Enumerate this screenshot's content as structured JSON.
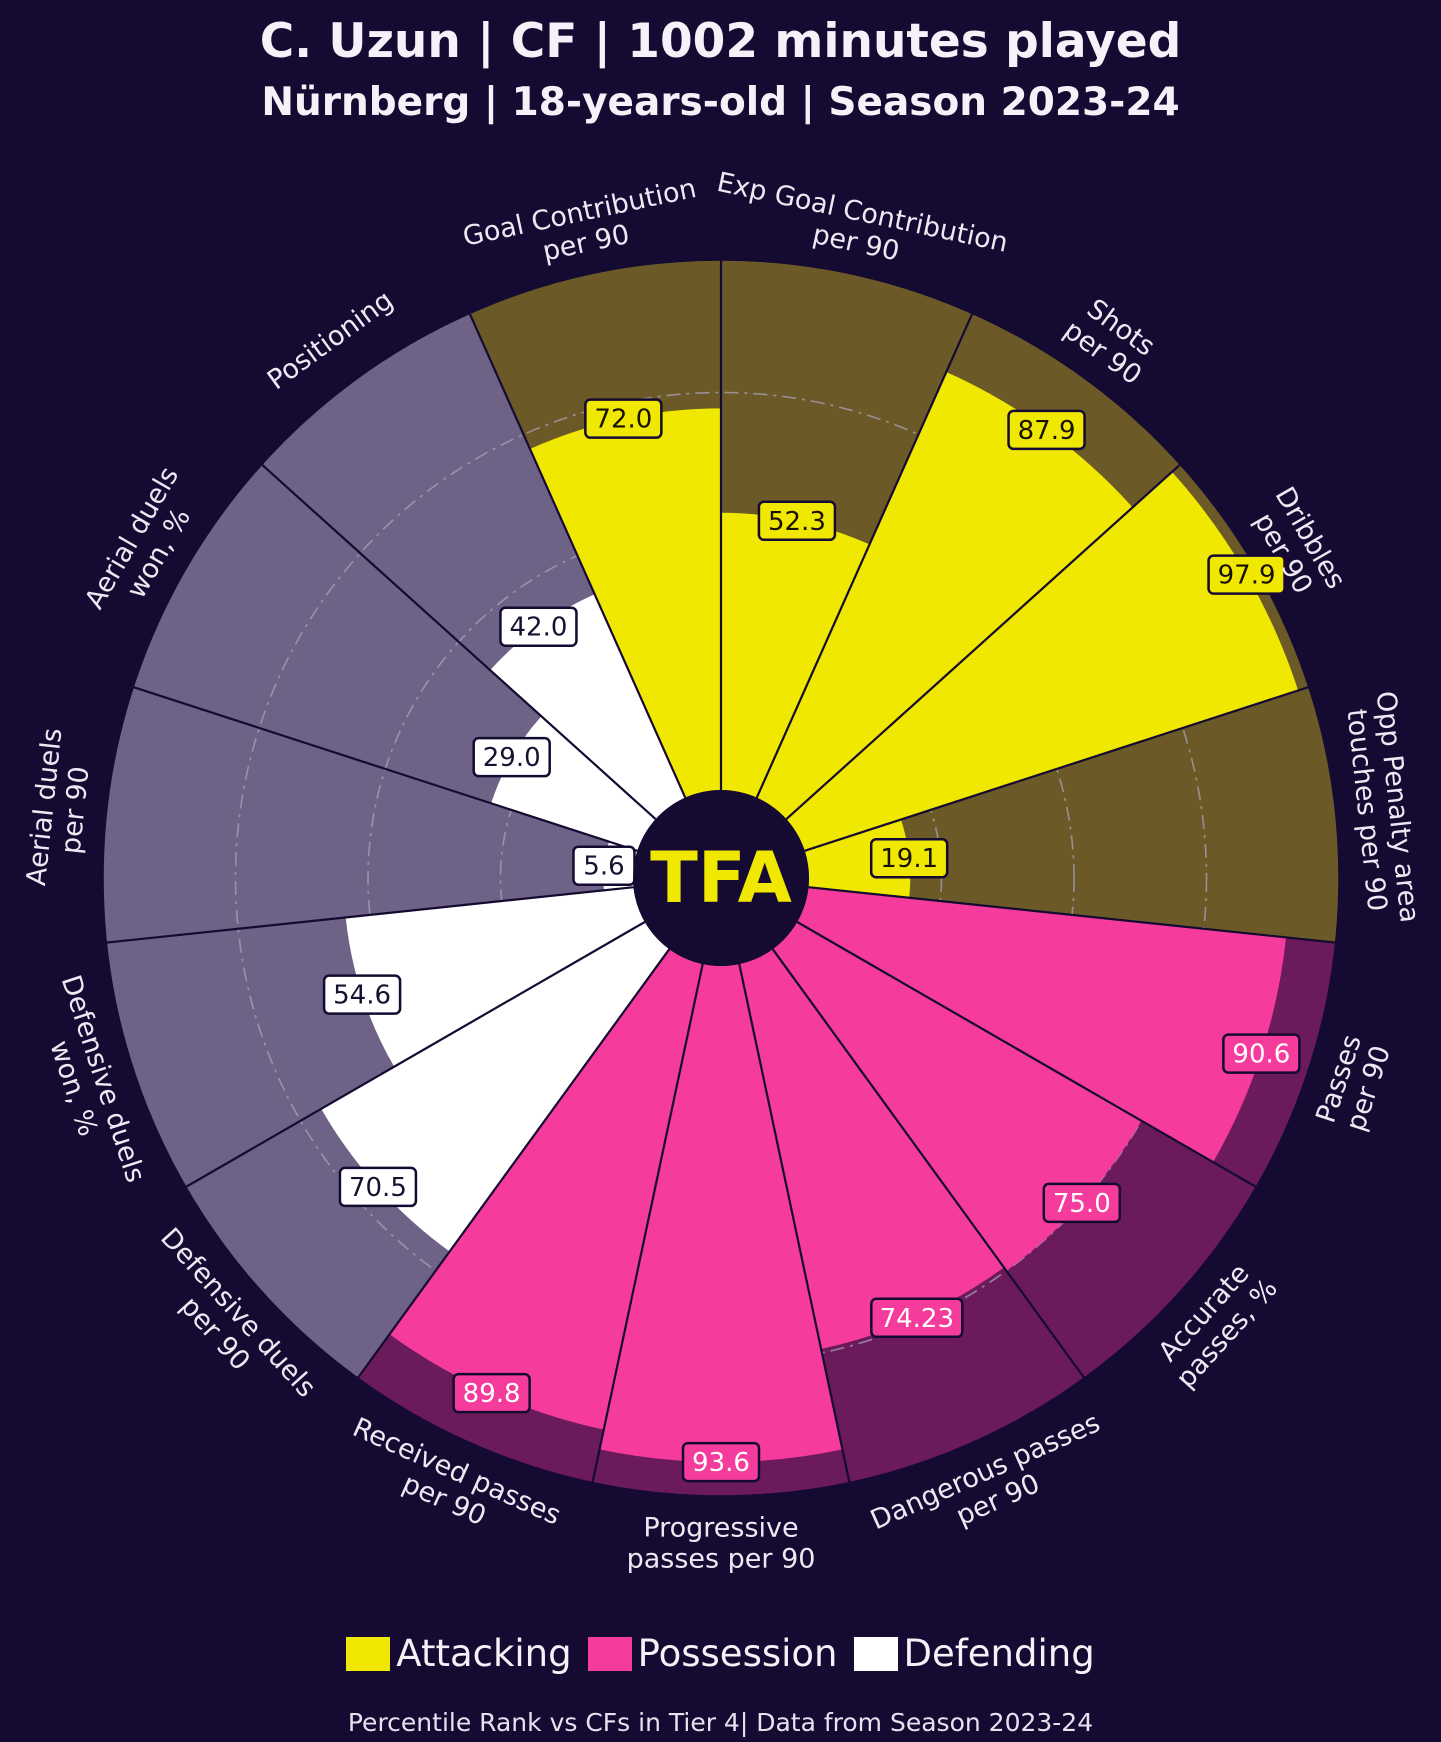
{
  "header": {
    "title": "C. Uzun | CF | 1002 minutes played",
    "subtitle": "Nürnberg | 18-years-old | Season 2023-24"
  },
  "logo": {
    "text": "TFA"
  },
  "legend": [
    {
      "label": "Attacking",
      "color": "#f0e800"
    },
    {
      "label": "Possession",
      "color": "#f53c9c"
    },
    {
      "label": "Defending",
      "color": "#ffffff"
    }
  ],
  "footer": "Percentile Rank vs CFs in Tier 4| Data from Season 2023-24",
  "colors": {
    "background": "#140a32",
    "attacking_fill": "#f0e800",
    "attacking_bg": "#6b5a28",
    "possession_fill": "#f53c9c",
    "possession_bg": "#6b1a5c",
    "defending_fill": "#ffffff",
    "defending_bg": "#6e6386"
  },
  "chart_data": {
    "type": "radial-bar",
    "title": "C. Uzun | CF | 1002 minutes played",
    "value_range": [
      0,
      100
    ],
    "gridlines": [
      25,
      50,
      75
    ],
    "params": [
      {
        "label": "Goal Contribution\nper 90",
        "value": 72.0,
        "display": "72.0",
        "group": "Attacking"
      },
      {
        "label": "Exp Goal Contribution\nper 90",
        "value": 52.3,
        "display": "52.3",
        "group": "Attacking"
      },
      {
        "label": "Shots\nper 90",
        "value": 87.9,
        "display": "87.9",
        "group": "Attacking"
      },
      {
        "label": "Dribbles\nper 90",
        "value": 97.9,
        "display": "97.9",
        "group": "Attacking"
      },
      {
        "label": "Opp Penalty area\ntouches per 90",
        "value": 19.1,
        "display": "19.1",
        "group": "Attacking"
      },
      {
        "label": "Passes\nper 90",
        "value": 90.6,
        "display": "90.6",
        "group": "Possession"
      },
      {
        "label": "Accurate\npasses, %",
        "value": 75.0,
        "display": "75.0",
        "group": "Possession"
      },
      {
        "label": "Dangerous passes\nper 90",
        "value": 74.23,
        "display": "74.23",
        "group": "Possession"
      },
      {
        "label": "Progressive\npasses per 90",
        "value": 93.6,
        "display": "93.6",
        "group": "Possession"
      },
      {
        "label": "Received passes\nper 90",
        "value": 89.8,
        "display": "89.8",
        "group": "Possession"
      },
      {
        "label": "Defensive duels\nper 90",
        "value": 70.5,
        "display": "70.5",
        "group": "Defending"
      },
      {
        "label": "Defensive duels\nwon, %",
        "value": 54.6,
        "display": "54.6",
        "group": "Defending"
      },
      {
        "label": "Aerial duels\nper 90",
        "value": 5.6,
        "display": "5.6",
        "group": "Defending"
      },
      {
        "label": "Aerial duels\nwon, %",
        "value": 29.0,
        "display": "29.0",
        "group": "Defending"
      },
      {
        "label": "Positioning",
        "value": 42.0,
        "display": "42.0",
        "group": "Defending"
      }
    ]
  }
}
